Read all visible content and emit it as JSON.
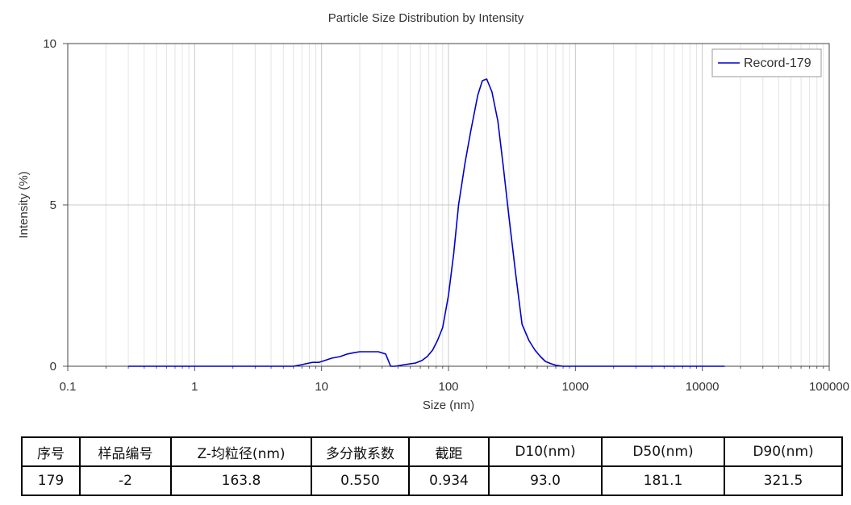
{
  "chart_data": {
    "type": "line",
    "title": "Particle Size Distribution by Intensity",
    "xlabel": "Size (nm)",
    "ylabel": "Intensity (%)",
    "xscale": "log",
    "xlim": [
      0.1,
      100000
    ],
    "ylim": [
      0,
      10
    ],
    "x_ticks": [
      "0.1",
      "1",
      "10",
      "100",
      "1000",
      "10000",
      "100000"
    ],
    "y_ticks": [
      "0",
      "5",
      "10"
    ],
    "grid": true,
    "legend_position": "top-right",
    "series": [
      {
        "name": "Record-179",
        "color": "#0000cc",
        "x": [
          0.3,
          1,
          3,
          6,
          7,
          8,
          8.5,
          9.5,
          11,
          12,
          14,
          16,
          18,
          20,
          24,
          28,
          32,
          35,
          38,
          45,
          55,
          62,
          68,
          75,
          82,
          90,
          100,
          110,
          120,
          135,
          150,
          170,
          185,
          200,
          220,
          245,
          270,
          300,
          340,
          380,
          430,
          480,
          530,
          580,
          640,
          700,
          800,
          1000,
          3000,
          10000,
          15000
        ],
        "y": [
          0,
          0,
          0,
          0,
          0.05,
          0.1,
          0.12,
          0.12,
          0.2,
          0.25,
          0.3,
          0.38,
          0.42,
          0.45,
          0.45,
          0.45,
          0.38,
          0,
          0,
          0.05,
          0.1,
          0.18,
          0.3,
          0.5,
          0.8,
          1.2,
          2.2,
          3.5,
          5.0,
          6.3,
          7.3,
          8.4,
          8.85,
          8.9,
          8.5,
          7.6,
          6.2,
          4.6,
          2.8,
          1.3,
          0.8,
          0.5,
          0.3,
          0.15,
          0.08,
          0.03,
          0,
          0,
          0,
          0,
          0
        ]
      }
    ]
  },
  "table": {
    "headers": [
      "序号",
      "样品编号",
      "Z-均粒径(nm)",
      "多分散系数",
      "截距",
      "D10(nm)",
      "D50(nm)",
      "D90(nm)"
    ],
    "rows": [
      [
        "179",
        "-2",
        "163.8",
        "0.550",
        "0.934",
        "93.0",
        "181.1",
        "321.5"
      ]
    ]
  }
}
